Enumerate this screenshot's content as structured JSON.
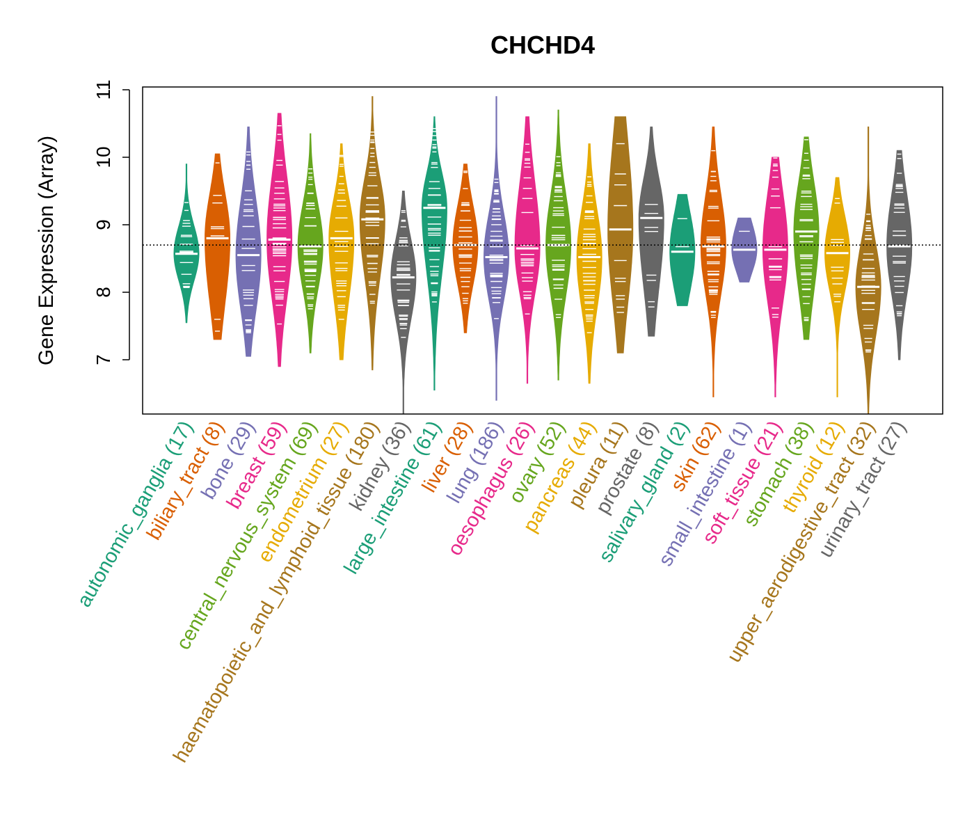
{
  "chart_data": {
    "type": "violin",
    "title": "CHCHD4",
    "ylabel": "Gene Expression (Array)",
    "xlabel": "",
    "ylim": [
      6.2,
      11.05
    ],
    "yticks": [
      7,
      8,
      9,
      10,
      11
    ],
    "reference_line": 8.7,
    "grid": false,
    "legend": "none",
    "series": [
      {
        "category": "autonomic_ganglia",
        "count": "(17)",
        "color": "#1B9E77",
        "min": 7.55,
        "max": 9.9,
        "median": 8.57,
        "q1": 8.3,
        "q3": 8.85
      },
      {
        "category": "biliary_tract",
        "count": "(8)",
        "color": "#D95F02",
        "min": 7.3,
        "max": 10.05,
        "median": 8.8,
        "q1": 8.15,
        "q3": 9.25
      },
      {
        "category": "bone",
        "count": "(29)",
        "color": "#7570B3",
        "min": 7.05,
        "max": 10.45,
        "median": 8.55,
        "q1": 8.0,
        "q3": 9.1
      },
      {
        "category": "breast",
        "count": "(59)",
        "color": "#E7298A",
        "min": 6.9,
        "max": 10.65,
        "median": 8.78,
        "q1": 8.2,
        "q3": 9.4
      },
      {
        "category": "central_nervous_system",
        "count": "(69)",
        "color": "#66A61E",
        "min": 7.1,
        "max": 10.35,
        "median": 8.68,
        "q1": 8.25,
        "q3": 9.1
      },
      {
        "category": "endometrium",
        "count": "(27)",
        "color": "#E6AB02",
        "min": 7.0,
        "max": 10.2,
        "median": 8.8,
        "q1": 8.2,
        "q3": 9.2
      },
      {
        "category": "haematopoietic_and_lymphoid_tissue",
        "count": "(180)",
        "color": "#A6761D",
        "min": 6.85,
        "max": 10.9,
        "median": 9.08,
        "q1": 8.5,
        "q3": 9.5
      },
      {
        "category": "kidney",
        "count": "(36)",
        "color": "#666666",
        "min": 6.2,
        "max": 9.5,
        "median": 8.22,
        "q1": 7.8,
        "q3": 8.6
      },
      {
        "category": "large_intestine",
        "count": "(61)",
        "color": "#1B9E77",
        "min": 6.55,
        "max": 10.6,
        "median": 9.25,
        "q1": 8.6,
        "q3": 9.6
      },
      {
        "category": "liver",
        "count": "(28)",
        "color": "#D95F02",
        "min": 7.4,
        "max": 9.9,
        "median": 8.7,
        "q1": 8.3,
        "q3": 9.1
      },
      {
        "category": "lung",
        "count": "(186)",
        "color": "#7570B3",
        "min": 6.4,
        "max": 10.9,
        "median": 8.52,
        "q1": 8.1,
        "q3": 8.95
      },
      {
        "category": "oesophagus",
        "count": "(26)",
        "color": "#E7298A",
        "min": 6.65,
        "max": 10.6,
        "median": 8.65,
        "q1": 8.2,
        "q3": 9.3
      },
      {
        "category": "ovary",
        "count": "(52)",
        "color": "#66A61E",
        "min": 6.7,
        "max": 10.7,
        "median": 8.7,
        "q1": 8.2,
        "q3": 9.2
      },
      {
        "category": "pancreas",
        "count": "(44)",
        "color": "#E6AB02",
        "min": 6.65,
        "max": 10.2,
        "median": 8.52,
        "q1": 8.0,
        "q3": 9.0
      },
      {
        "category": "pleura",
        "count": "(11)",
        "color": "#A6761D",
        "min": 7.1,
        "max": 10.6,
        "median": 8.93,
        "q1": 8.2,
        "q3": 9.8
      },
      {
        "category": "prostate",
        "count": "(8)",
        "color": "#666666",
        "min": 7.35,
        "max": 10.45,
        "median": 9.1,
        "q1": 8.4,
        "q3": 9.5
      },
      {
        "category": "salivary_gland",
        "count": "(2)",
        "color": "#1B9E77",
        "min": 7.8,
        "max": 9.45,
        "median": 8.6,
        "q1": 8.2,
        "q3": 9.0
      },
      {
        "category": "skin",
        "count": "(62)",
        "color": "#D95F02",
        "min": 6.45,
        "max": 10.45,
        "median": 8.68,
        "q1": 8.2,
        "q3": 9.2
      },
      {
        "category": "small_intestine",
        "count": "(1)",
        "color": "#7570B3",
        "min": 8.15,
        "max": 9.1,
        "median": 8.63,
        "q1": 8.4,
        "q3": 8.9
      },
      {
        "category": "soft_tissue",
        "count": "(21)",
        "color": "#E7298A",
        "min": 6.45,
        "max": 10.0,
        "median": 8.63,
        "q1": 8.1,
        "q3": 9.2
      },
      {
        "category": "stomach",
        "count": "(38)",
        "color": "#66A61E",
        "min": 7.3,
        "max": 10.3,
        "median": 8.9,
        "q1": 8.3,
        "q3": 9.4
      },
      {
        "category": "thyroid",
        "count": "(12)",
        "color": "#E6AB02",
        "min": 6.45,
        "max": 9.7,
        "median": 8.58,
        "q1": 8.2,
        "q3": 8.95
      },
      {
        "category": "upper_aerodigestive_tract",
        "count": "(32)",
        "color": "#A6761D",
        "min": 6.2,
        "max": 10.45,
        "median": 8.08,
        "q1": 7.6,
        "q3": 8.5
      },
      {
        "category": "urinary_tract",
        "count": "(27)",
        "color": "#666666",
        "min": 7.0,
        "max": 10.1,
        "median": 8.68,
        "q1": 8.2,
        "q3": 9.2
      }
    ]
  }
}
